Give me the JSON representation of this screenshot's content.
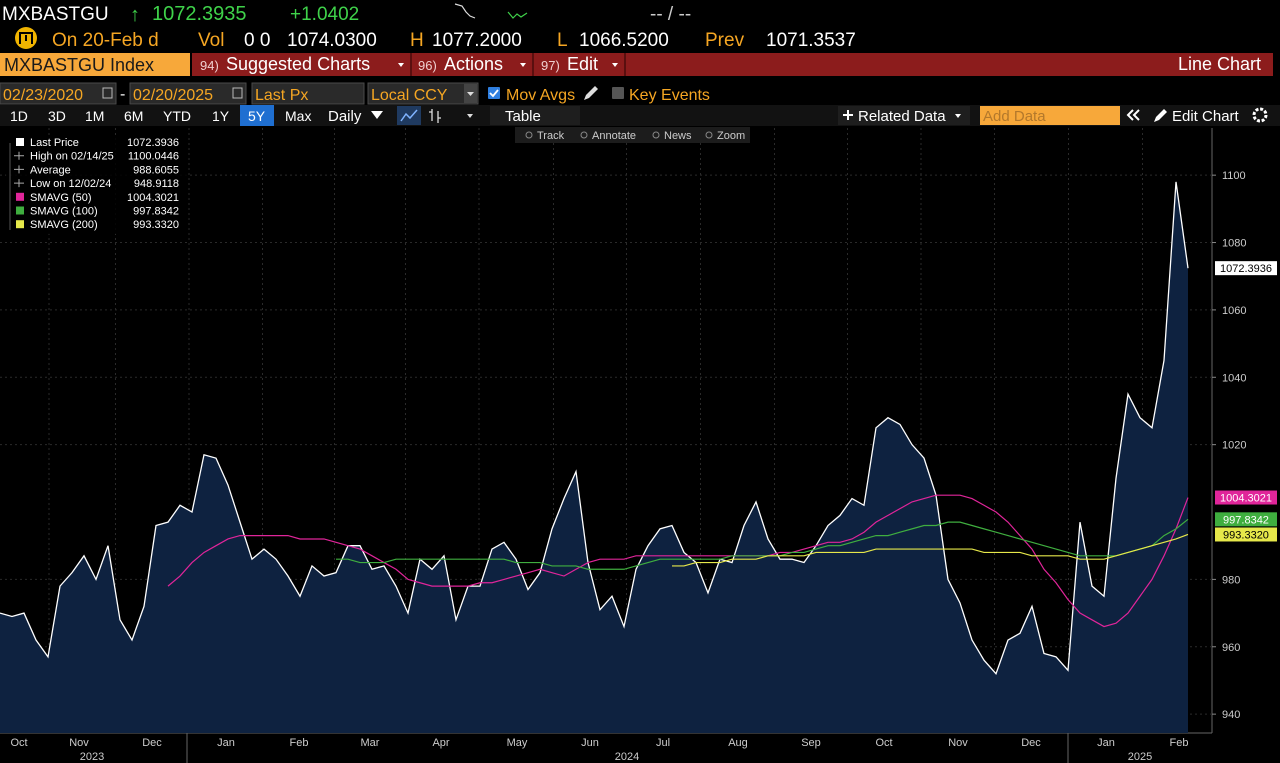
{
  "quote": {
    "ticker": "MXBASTGU",
    "arrow": "↑",
    "last": "1072.3935",
    "change": "+1.0402",
    "bid_ask": "-- / --"
  },
  "stats": {
    "date": "On 20-Feb d",
    "vol_label": "Vol",
    "vol": "0 0",
    "open": "1074.0300",
    "high_label": "H",
    "high": "1077.2000",
    "low_label": "L",
    "low": "1066.5200",
    "prev_label": "Prev",
    "prev": "1071.3537"
  },
  "menu": {
    "security": "MXBASTGU Index",
    "items": [
      {
        "key": "94)",
        "label": "Suggested Charts"
      },
      {
        "key": "96)",
        "label": "Actions"
      },
      {
        "key": "97)",
        "label": "Edit"
      }
    ],
    "view": "Line Chart"
  },
  "settings": {
    "start": "02/23/2020",
    "dash": "-",
    "end": "02/20/2025",
    "field": "Last Px",
    "currency": "Local CCY",
    "mov_avgs": "Mov Avgs",
    "mov_avgs_checked": true,
    "key_events": "Key Events",
    "key_events_checked": false
  },
  "toolbar": {
    "periods": [
      "1D",
      "3D",
      "1M",
      "6M",
      "YTD",
      "1Y",
      "5Y",
      "Max"
    ],
    "selected_period": "5Y",
    "frequency": "Daily",
    "table": "Table",
    "related": "Related Data",
    "add_data": "Add Data",
    "edit_chart": "Edit Chart"
  },
  "chart_tools": [
    "Track",
    "Annotate",
    "News",
    "Zoom"
  ],
  "legend": [
    {
      "label": "Last Price",
      "value": "1072.3936",
      "color": "#ffffff"
    },
    {
      "label": "High on 02/14/25",
      "value": "1100.0446"
    },
    {
      "label": "Average",
      "value": "988.6055"
    },
    {
      "label": "Low on 12/02/24",
      "value": "948.9118"
    },
    {
      "label": "SMAVG (50)",
      "value": "1004.3021",
      "color": "#e0259a"
    },
    {
      "label": "SMAVG (100)",
      "value": "997.8342",
      "color": "#3fae3f"
    },
    {
      "label": "SMAVG (200)",
      "value": "993.3320",
      "color": "#e6e84a"
    }
  ],
  "chart_data": {
    "type": "line",
    "x_labels": [
      "Oct",
      "Nov",
      "Dec",
      "Jan",
      "Feb",
      "Mar",
      "Apr",
      "May",
      "Jun",
      "Jul",
      "Aug",
      "Sep",
      "Oct",
      "Nov",
      "Dec",
      "Jan",
      "Feb"
    ],
    "x_year_labels": [
      "2023",
      "2024",
      "2025"
    ],
    "ylim": [
      934.4,
      1114
    ],
    "yticks": [
      940,
      960,
      980,
      1020,
      1040,
      1060,
      1080,
      1100
    ],
    "grid": true,
    "series": [
      {
        "name": "Last Price",
        "color": "#ffffff",
        "area": "#0e2240",
        "end_label": "1072.3936",
        "values": [
          970,
          969,
          970,
          962,
          957,
          978,
          982,
          987,
          980,
          990,
          968,
          962,
          972,
          996,
          997,
          1002,
          1000,
          1017,
          1016,
          1008,
          997,
          986,
          989,
          986,
          981,
          975,
          984,
          981,
          982,
          990,
          990,
          983,
          984,
          978,
          970,
          986,
          983,
          987,
          968,
          978,
          978,
          989,
          991,
          986,
          977,
          982,
          995,
          1004,
          1012,
          985,
          971,
          975,
          966,
          983,
          990,
          995,
          996,
          988,
          985,
          976,
          986,
          985,
          996,
          1003,
          992,
          986,
          986,
          985,
          990,
          996,
          999,
          1004,
          1002,
          1025,
          1028,
          1026,
          1020,
          1016,
          1005,
          980,
          973,
          962,
          956,
          952,
          962,
          964,
          972,
          958,
          957,
          953,
          997,
          978,
          975,
          1010,
          1035,
          1028,
          1025,
          1045,
          1098,
          1072.3936
        ]
      },
      {
        "name": "SMAVG (50)",
        "color": "#e0259a",
        "end_label": "1004.3021",
        "values": [
          null,
          null,
          null,
          null,
          null,
          null,
          null,
          null,
          null,
          null,
          null,
          null,
          null,
          null,
          978,
          981,
          985,
          988,
          990,
          992,
          993,
          993,
          993,
          993,
          993,
          992,
          992,
          992,
          991,
          990,
          989,
          987,
          985,
          983,
          980,
          979,
          978,
          978,
          978,
          978,
          979,
          979,
          980,
          981,
          982,
          983,
          982,
          981,
          983,
          985,
          986,
          986,
          986,
          987,
          987,
          987,
          987,
          987,
          987,
          987,
          987,
          987,
          987,
          987,
          987,
          988,
          988,
          989,
          990,
          991,
          991,
          992,
          994,
          997,
          999,
          1001,
          1003,
          1004,
          1005,
          1005,
          1005,
          1004,
          1002,
          1000,
          997,
          993,
          989,
          983,
          979,
          974,
          970,
          968,
          966,
          967,
          970,
          975,
          980,
          987,
          995,
          1004.3021
        ]
      },
      {
        "name": "SMAVG (100)",
        "color": "#3fae3f",
        "end_label": "997.8342",
        "values": [
          null,
          null,
          null,
          null,
          null,
          null,
          null,
          null,
          null,
          null,
          null,
          null,
          null,
          null,
          null,
          null,
          null,
          null,
          null,
          null,
          null,
          null,
          null,
          null,
          null,
          null,
          null,
          null,
          986,
          986,
          985,
          985,
          985,
          986,
          986,
          986,
          986,
          986,
          986,
          986,
          986,
          986,
          986,
          985,
          985,
          985,
          984,
          984,
          984,
          983,
          983,
          983,
          983,
          984,
          985,
          986,
          986,
          986,
          986,
          986,
          986,
          987,
          987,
          987,
          987,
          987,
          988,
          988,
          989,
          990,
          990,
          991,
          992,
          993,
          993,
          994,
          995,
          996,
          996,
          997,
          997,
          996,
          995,
          994,
          993,
          992,
          991,
          990,
          989,
          988,
          987,
          987,
          987,
          987,
          988,
          989,
          990,
          993,
          995,
          997.8342
        ]
      },
      {
        "name": "SMAVG (200)",
        "color": "#e6e84a",
        "end_label": "993.3320",
        "values": [
          null,
          null,
          null,
          null,
          null,
          null,
          null,
          null,
          null,
          null,
          null,
          null,
          null,
          null,
          null,
          null,
          null,
          null,
          null,
          null,
          null,
          null,
          null,
          null,
          null,
          null,
          null,
          null,
          null,
          null,
          null,
          null,
          null,
          null,
          null,
          null,
          null,
          null,
          null,
          null,
          null,
          null,
          null,
          null,
          null,
          null,
          null,
          null,
          null,
          null,
          null,
          null,
          null,
          null,
          null,
          null,
          984,
          984,
          985,
          985,
          985,
          986,
          986,
          986,
          987,
          987,
          987,
          987,
          988,
          988,
          988,
          988,
          988,
          989,
          989,
          989,
          989,
          989,
          989,
          989,
          989,
          989,
          988,
          988,
          988,
          988,
          987,
          987,
          987,
          987,
          986,
          986,
          986,
          987,
          988,
          989,
          990,
          991,
          992,
          993.332
        ]
      }
    ]
  }
}
